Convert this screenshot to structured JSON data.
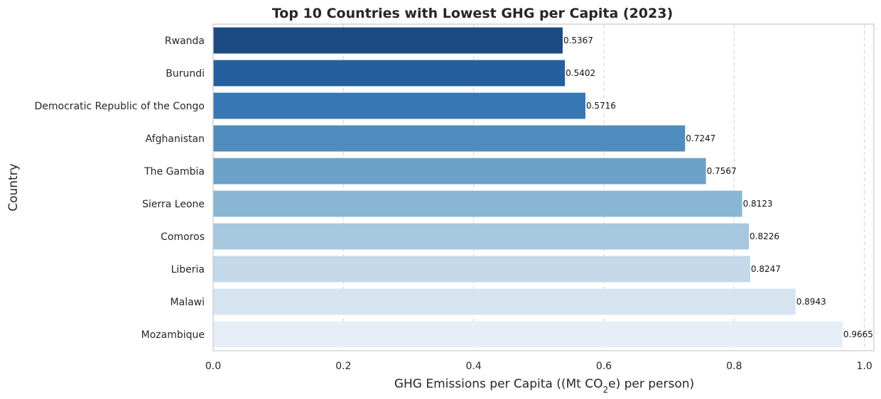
{
  "chart_data": {
    "type": "bar",
    "orientation": "horizontal",
    "title": "Top 10 Countries with Lowest GHG per Capita (2023)",
    "xlabel_prefix": "GHG Emissions per Capita ((Mt CO",
    "xlabel_sub": "2",
    "xlabel_suffix": "e) per person)",
    "ylabel": "Country",
    "categories": [
      "Rwanda",
      "Burundi",
      "Democratic Republic of the Congo",
      "Afghanistan",
      "The Gambia",
      "Sierra Leone",
      "Comoros",
      "Liberia",
      "Malawi",
      "Mozambique"
    ],
    "values": [
      0.5367,
      0.5402,
      0.5716,
      0.7247,
      0.7567,
      0.8123,
      0.8226,
      0.8247,
      0.8943,
      0.9665
    ],
    "value_labels": [
      "0.5367",
      "0.5402",
      "0.5716",
      "0.7247",
      "0.7567",
      "0.8123",
      "0.8226",
      "0.8247",
      "0.8943",
      "0.9665"
    ],
    "xlim": [
      0,
      1.0146
    ],
    "xticks": [
      0.0,
      0.2,
      0.4,
      0.6,
      0.8,
      1.0
    ],
    "xtick_labels": [
      "0.0",
      "0.2",
      "0.4",
      "0.6",
      "0.8",
      "1.0"
    ],
    "grid": "x-dashed",
    "colors": [
      "#1c4a82",
      "#255f9e",
      "#3677b4",
      "#508cbd",
      "#6ba1c9",
      "#89b7d3",
      "#a6c8de",
      "#c3d8e9",
      "#d6e4f1",
      "#e6eff8"
    ]
  }
}
